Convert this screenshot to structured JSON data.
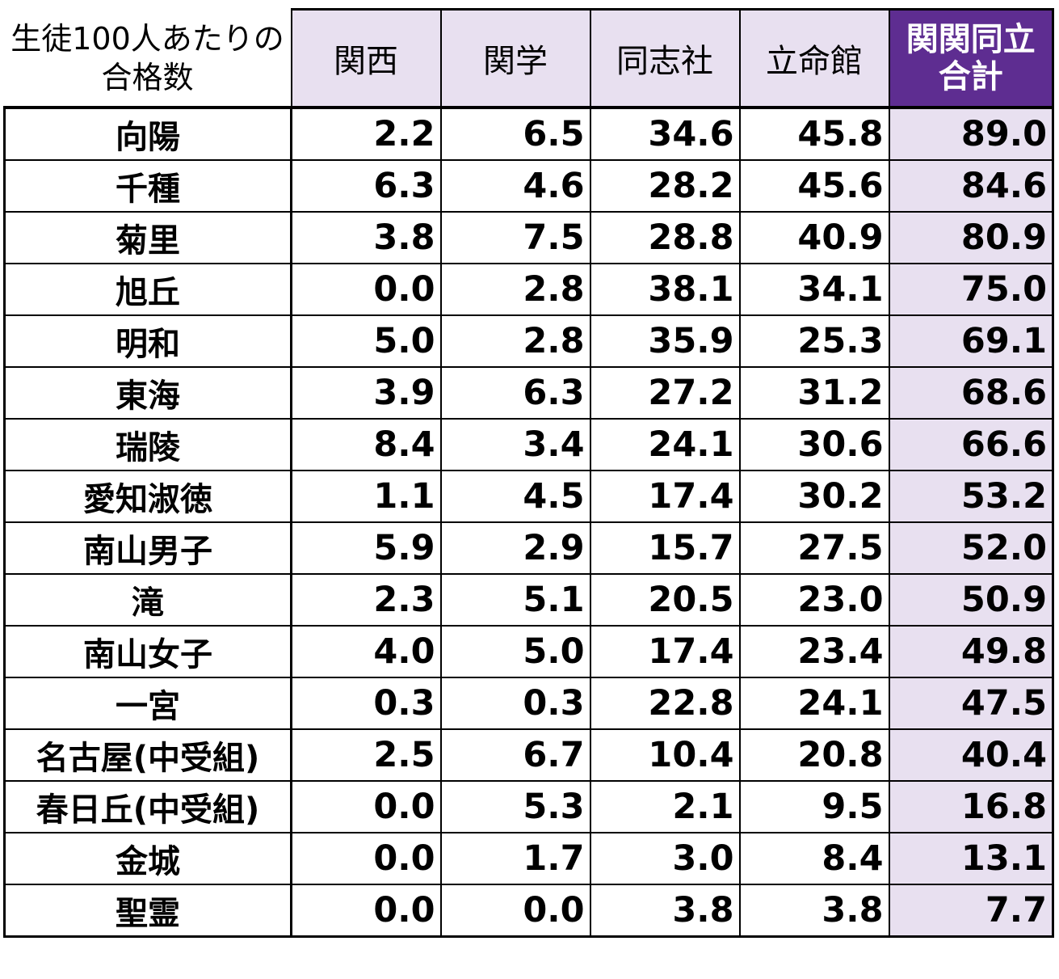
{
  "chart_data": {
    "type": "table",
    "header": {
      "corner_line1": "生徒100人あたりの",
      "corner_line2": "合格数",
      "columns": [
        "関西",
        "関学",
        "同志社",
        "立命館"
      ],
      "total_line1": "関関同立",
      "total_line2": "合計"
    },
    "rows": [
      {
        "school": "向陽",
        "values": [
          "2.2",
          "6.5",
          "34.6",
          "45.8"
        ],
        "total": "89.0"
      },
      {
        "school": "千種",
        "values": [
          "6.3",
          "4.6",
          "28.2",
          "45.6"
        ],
        "total": "84.6"
      },
      {
        "school": "菊里",
        "values": [
          "3.8",
          "7.5",
          "28.8",
          "40.9"
        ],
        "total": "80.9"
      },
      {
        "school": "旭丘",
        "values": [
          "0.0",
          "2.8",
          "38.1",
          "34.1"
        ],
        "total": "75.0"
      },
      {
        "school": "明和",
        "values": [
          "5.0",
          "2.8",
          "35.9",
          "25.3"
        ],
        "total": "69.1"
      },
      {
        "school": "東海",
        "values": [
          "3.9",
          "6.3",
          "27.2",
          "31.2"
        ],
        "total": "68.6"
      },
      {
        "school": "瑞陵",
        "values": [
          "8.4",
          "3.4",
          "24.1",
          "30.6"
        ],
        "total": "66.6"
      },
      {
        "school": "愛知淑徳",
        "values": [
          "1.1",
          "4.5",
          "17.4",
          "30.2"
        ],
        "total": "53.2"
      },
      {
        "school": "南山男子",
        "values": [
          "5.9",
          "2.9",
          "15.7",
          "27.5"
        ],
        "total": "52.0"
      },
      {
        "school": "滝",
        "values": [
          "2.3",
          "5.1",
          "20.5",
          "23.0"
        ],
        "total": "50.9"
      },
      {
        "school": "南山女子",
        "values": [
          "4.0",
          "5.0",
          "17.4",
          "23.4"
        ],
        "total": "49.8"
      },
      {
        "school": "一宮",
        "values": [
          "0.3",
          "0.3",
          "22.8",
          "24.1"
        ],
        "total": "47.5"
      },
      {
        "school": "名古屋(中受組)",
        "values": [
          "2.5",
          "6.7",
          "10.4",
          "20.8"
        ],
        "total": "40.4"
      },
      {
        "school": "春日丘(中受組)",
        "values": [
          "0.0",
          "5.3",
          "2.1",
          "9.5"
        ],
        "total": "16.8"
      },
      {
        "school": "金城",
        "values": [
          "0.0",
          "1.7",
          "3.0",
          "8.4"
        ],
        "total": "13.1"
      },
      {
        "school": "聖霊",
        "values": [
          "0.0",
          "0.0",
          "3.8",
          "3.8"
        ],
        "total": "7.7"
      }
    ]
  },
  "colors": {
    "header_fill": "#e8e0f0",
    "total_header_fill": "#5e2d91",
    "total_column_fill": "#e8e0f0"
  }
}
